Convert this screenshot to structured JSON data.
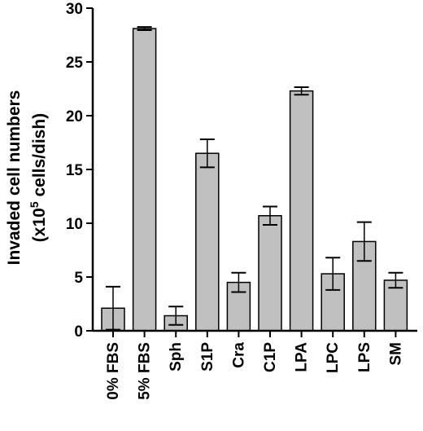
{
  "chart_data": {
    "type": "bar",
    "categories": [
      "0% FBS",
      "5% FBS",
      "Sph",
      "S1P",
      "Cra",
      "C1P",
      "LPA",
      "LPC",
      "LPS",
      "SM"
    ],
    "values": [
      2.1,
      28.1,
      1.4,
      16.5,
      4.5,
      10.7,
      22.3,
      5.3,
      8.3,
      4.7
    ],
    "errors": [
      2.0,
      0.15,
      0.85,
      1.3,
      0.9,
      0.85,
      0.35,
      1.5,
      1.8,
      0.7
    ],
    "ylabel_line1": "Invaded cell numbers",
    "ylabel_line2_prefix": "(x10",
    "ylabel_line2_sup": "5",
    "ylabel_line2_suffix": " cells/dish)",
    "ylim": [
      0,
      30
    ],
    "yticks": [
      0,
      5,
      10,
      15,
      20,
      25,
      30
    ],
    "bar_color": "#c0c0c0",
    "grid": false
  }
}
